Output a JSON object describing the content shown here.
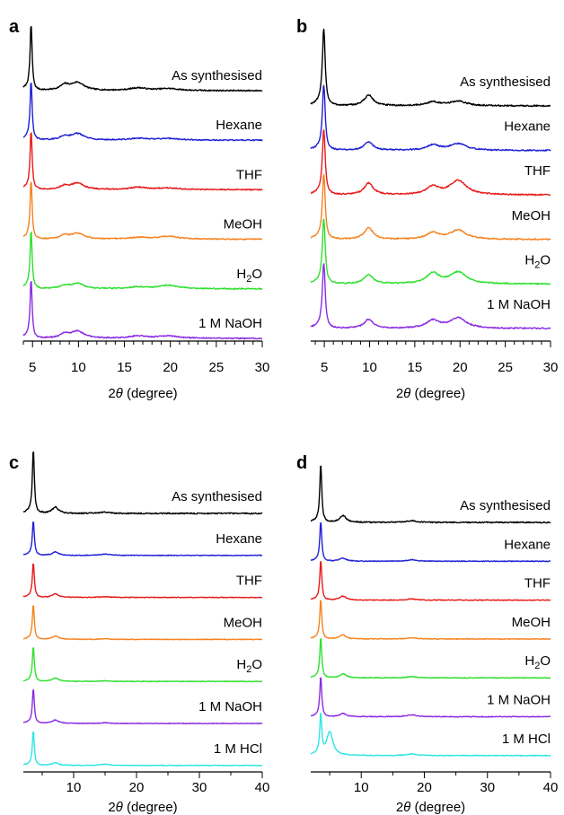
{
  "colors": {
    "black": "#000000",
    "blue": "#1f1fd6",
    "red": "#e81a1a",
    "orange": "#f5821f",
    "green": "#2fe02f",
    "purple": "#8a2be2",
    "cyan": "#2ee6e6"
  },
  "chart_data": [
    {
      "panel": "a",
      "type": "line",
      "xlabel_prefix": "2",
      "xlabel_theta": "θ",
      "xlabel_suffix": " (degree)",
      "xlim": [
        4,
        30
      ],
      "xticks": [
        5,
        10,
        15,
        20,
        25,
        30
      ],
      "xtick_labels": [
        "5",
        "10",
        "15",
        "20",
        "25",
        "30"
      ],
      "series": [
        {
          "name": "As synthesised",
          "color_key": "black",
          "peaks": [
            [
              4.85,
              1.0
            ],
            [
              8.5,
              0.08
            ],
            [
              9.9,
              0.12
            ],
            [
              16.5,
              0.04
            ],
            [
              19.8,
              0.03
            ]
          ]
        },
        {
          "name": "Hexane",
          "color_key": "blue",
          "peaks": [
            [
              4.85,
              1.0
            ],
            [
              8.5,
              0.06
            ],
            [
              9.9,
              0.11
            ],
            [
              16.5,
              0.03
            ],
            [
              19.8,
              0.03
            ]
          ]
        },
        {
          "name": "THF",
          "color_key": "red",
          "peaks": [
            [
              4.85,
              1.0
            ],
            [
              8.5,
              0.06
            ],
            [
              9.9,
              0.11
            ],
            [
              16.5,
              0.04
            ],
            [
              19.8,
              0.03
            ]
          ]
        },
        {
          "name": "MeOH",
          "color_key": "orange",
          "peaks": [
            [
              4.85,
              1.0
            ],
            [
              8.5,
              0.06
            ],
            [
              9.9,
              0.1
            ],
            [
              16.5,
              0.03
            ],
            [
              19.8,
              0.05
            ]
          ]
        },
        {
          "name": "H",
          "name_sub": "2",
          "name_tail": "O",
          "color_key": "green",
          "peaks": [
            [
              4.85,
              1.0
            ],
            [
              8.5,
              0.05
            ],
            [
              9.9,
              0.09
            ],
            [
              16.5,
              0.03
            ],
            [
              19.8,
              0.06
            ]
          ]
        },
        {
          "name": "1 M NaOH",
          "color_key": "purple",
          "peaks": [
            [
              4.85,
              1.0
            ],
            [
              8.5,
              0.07
            ],
            [
              9.9,
              0.12
            ],
            [
              16.5,
              0.04
            ],
            [
              19.8,
              0.04
            ]
          ]
        }
      ]
    },
    {
      "panel": "b",
      "type": "line",
      "xlabel_prefix": "2",
      "xlabel_theta": "θ",
      "xlabel_suffix": " (degree)",
      "xlim": [
        3.5,
        30
      ],
      "xticks": [
        5,
        10,
        15,
        20,
        25,
        30
      ],
      "xtick_labels": [
        "5",
        "10",
        "15",
        "20",
        "25",
        "30"
      ],
      "series": [
        {
          "name": "As synthesised",
          "color_key": "black",
          "peaks": [
            [
              4.95,
              1.0
            ],
            [
              9.9,
              0.14
            ],
            [
              17.0,
              0.05
            ],
            [
              19.8,
              0.06
            ]
          ]
        },
        {
          "name": "Hexane",
          "color_key": "blue",
          "peaks": [
            [
              4.95,
              1.0
            ],
            [
              9.9,
              0.13
            ],
            [
              17.0,
              0.08
            ],
            [
              19.8,
              0.1
            ]
          ]
        },
        {
          "name": "THF",
          "color_key": "red",
          "peaks": [
            [
              4.95,
              1.0
            ],
            [
              9.9,
              0.18
            ],
            [
              17.0,
              0.12
            ],
            [
              19.8,
              0.22
            ]
          ]
        },
        {
          "name": "MeOH",
          "color_key": "orange",
          "peaks": [
            [
              4.95,
              1.0
            ],
            [
              9.9,
              0.18
            ],
            [
              17.0,
              0.1
            ],
            [
              19.8,
              0.14
            ]
          ]
        },
        {
          "name": "H",
          "name_sub": "2",
          "name_tail": "O",
          "color_key": "green",
          "peaks": [
            [
              4.95,
              1.0
            ],
            [
              9.9,
              0.14
            ],
            [
              17.0,
              0.16
            ],
            [
              19.8,
              0.18
            ]
          ]
        },
        {
          "name": "1 M NaOH",
          "color_key": "purple",
          "peaks": [
            [
              4.95,
              1.0
            ],
            [
              9.9,
              0.14
            ],
            [
              17.0,
              0.12
            ],
            [
              19.8,
              0.16
            ]
          ]
        }
      ]
    },
    {
      "panel": "c",
      "type": "line",
      "xlabel_prefix": "2",
      "xlabel_theta": "θ",
      "xlabel_suffix": " (degree)",
      "xlim": [
        2,
        40
      ],
      "xticks": [
        10,
        20,
        30,
        40
      ],
      "xtick_labels": [
        "10",
        "20",
        "30",
        "40"
      ],
      "series": [
        {
          "name": "As synthesised",
          "color_key": "black",
          "peaks": [
            [
              3.6,
              1.0
            ],
            [
              7.1,
              0.1
            ],
            [
              15.0,
              0.02
            ]
          ]
        },
        {
          "name": "Hexane",
          "color_key": "blue",
          "peaks": [
            [
              3.6,
              1.0
            ],
            [
              7.1,
              0.1
            ],
            [
              15.0,
              0.04
            ]
          ]
        },
        {
          "name": "THF",
          "color_key": "red",
          "peaks": [
            [
              3.6,
              1.0
            ],
            [
              7.1,
              0.1
            ],
            [
              15.0,
              0.02
            ]
          ]
        },
        {
          "name": "MeOH",
          "color_key": "orange",
          "peaks": [
            [
              3.6,
              1.0
            ],
            [
              7.1,
              0.1
            ],
            [
              15.0,
              0.02
            ]
          ]
        },
        {
          "name": "H",
          "name_sub": "2",
          "name_tail": "O",
          "color_key": "green",
          "peaks": [
            [
              3.6,
              1.0
            ],
            [
              7.1,
              0.1
            ],
            [
              15.0,
              0.02
            ]
          ]
        },
        {
          "name": "1 M NaOH",
          "color_key": "purple",
          "peaks": [
            [
              3.6,
              1.0
            ],
            [
              7.1,
              0.1
            ],
            [
              15.0,
              0.02
            ]
          ]
        },
        {
          "name": "1 M HCl",
          "color_key": "cyan",
          "peaks": [
            [
              3.6,
              1.0
            ],
            [
              7.1,
              0.08
            ],
            [
              15.0,
              0.04
            ]
          ]
        }
      ]
    },
    {
      "panel": "d",
      "type": "line",
      "xlabel_prefix": "2",
      "xlabel_theta": "θ",
      "xlabel_suffix": " (degree)",
      "xlim": [
        2,
        40
      ],
      "xticks": [
        10,
        20,
        30,
        40
      ],
      "xtick_labels": [
        "10",
        "20",
        "30",
        "40"
      ],
      "series": [
        {
          "name": "As synthesised",
          "color_key": "black",
          "peaks": [
            [
              3.6,
              1.0
            ],
            [
              7.1,
              0.12
            ],
            [
              18.0,
              0.03
            ]
          ]
        },
        {
          "name": "Hexane",
          "color_key": "blue",
          "peaks": [
            [
              3.6,
              1.0
            ],
            [
              7.1,
              0.08
            ],
            [
              18.0,
              0.04
            ]
          ]
        },
        {
          "name": "THF",
          "color_key": "red",
          "peaks": [
            [
              3.6,
              1.0
            ],
            [
              7.1,
              0.1
            ],
            [
              18.0,
              0.03
            ]
          ]
        },
        {
          "name": "MeOH",
          "color_key": "orange",
          "peaks": [
            [
              3.6,
              1.0
            ],
            [
              7.1,
              0.1
            ],
            [
              18.0,
              0.03
            ]
          ]
        },
        {
          "name": "H",
          "name_sub": "2",
          "name_tail": "O",
          "color_key": "green",
          "peaks": [
            [
              3.6,
              1.0
            ],
            [
              7.1,
              0.1
            ],
            [
              18.0,
              0.03
            ]
          ]
        },
        {
          "name": "1 M NaOH",
          "color_key": "purple",
          "peaks": [
            [
              3.6,
              1.0
            ],
            [
              7.1,
              0.08
            ],
            [
              18.0,
              0.05
            ]
          ]
        },
        {
          "name": "1 M HCl",
          "color_key": "cyan",
          "peaks": [
            [
              3.6,
              1.0
            ],
            [
              5.0,
              0.6
            ],
            [
              18.0,
              0.04
            ]
          ]
        }
      ]
    }
  ]
}
